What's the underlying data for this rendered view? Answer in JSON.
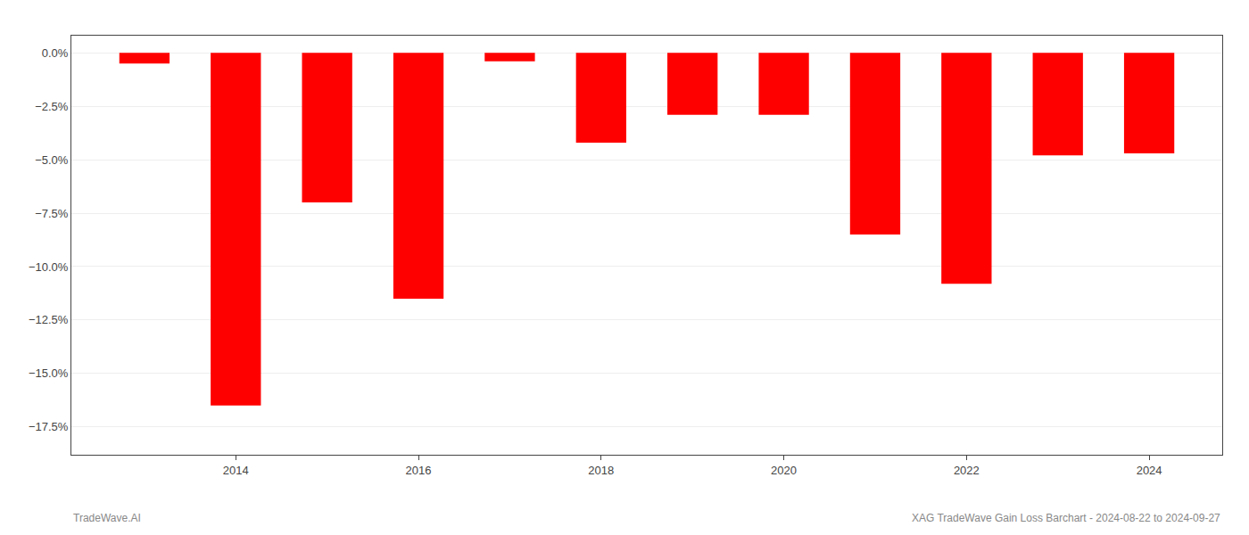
{
  "chart_data": {
    "type": "bar",
    "x": [
      2013,
      2014,
      2015,
      2016,
      2017,
      2018,
      2019,
      2020,
      2021,
      2022,
      2023,
      2024
    ],
    "values": [
      -0.5,
      -16.5,
      -7.0,
      -11.5,
      -0.4,
      -4.2,
      -2.9,
      -2.9,
      -8.5,
      -10.8,
      -4.8,
      -4.7
    ],
    "color": "#ff0000",
    "xlim": [
      2012.2,
      2024.8
    ],
    "xticks": [
      2014,
      2016,
      2018,
      2020,
      2022,
      2024
    ],
    "ylim": [
      -18.8,
      0.8
    ],
    "yticks": [
      {
        "value": 0.0,
        "label": "0.0%"
      },
      {
        "value": -2.5,
        "label": "−2.5%"
      },
      {
        "value": -5.0,
        "label": "−5.0%"
      },
      {
        "value": -7.5,
        "label": "−7.5%"
      },
      {
        "value": -10.0,
        "label": "−10.0%"
      },
      {
        "value": -12.5,
        "label": "−12.5%"
      },
      {
        "value": -15.0,
        "label": "−15.0%"
      },
      {
        "value": -17.5,
        "label": "−17.5%"
      }
    ],
    "grid": true,
    "annotations": [
      "TradeWave.AI",
      "XAG TradeWave Gain Loss Barchart - 2024-08-22 to 2024-09-27"
    ]
  }
}
